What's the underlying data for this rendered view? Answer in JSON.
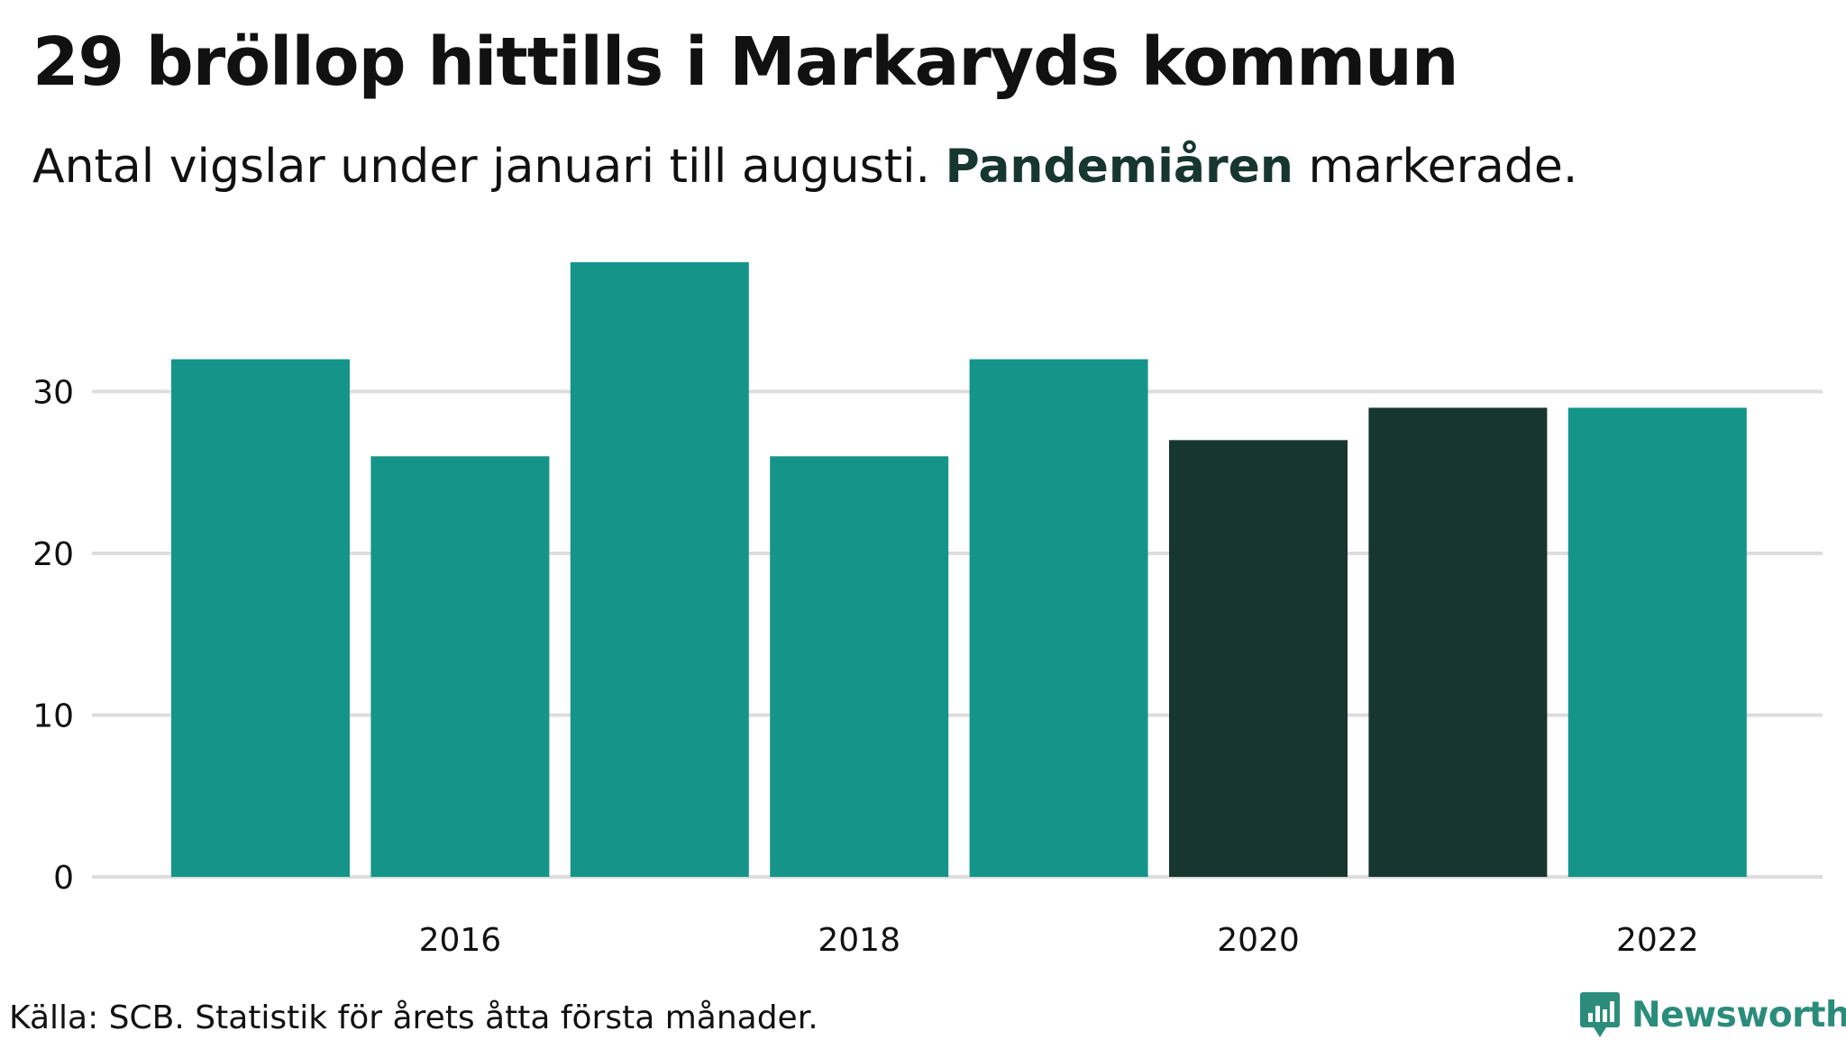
{
  "title": "29 bröllop hittills i Markaryds kommun",
  "subtitle": {
    "before": "Antal vigslar under januari till augusti.",
    "highlight": "Pandemiåren",
    "after": "markerade."
  },
  "source": "Källa: SCB. Statistik för årets åtta första månader.",
  "brand": {
    "name": "Newsworthy",
    "logo_icon": "newsworthy-bar-chart-logo-icon"
  },
  "colors": {
    "normal": "#15958a",
    "pandemic": "#17362f",
    "grid": "#dddddd",
    "brand": "#2b8c7b"
  },
  "chart_data": {
    "type": "bar",
    "x": [
      2015,
      2016,
      2017,
      2018,
      2019,
      2020,
      2021,
      2022
    ],
    "values": [
      32,
      26,
      38,
      26,
      32,
      27,
      29,
      29
    ],
    "highlighted": [
      false,
      false,
      false,
      false,
      false,
      true,
      true,
      false
    ],
    "x_tick_labels": [
      "2016",
      "2018",
      "2020",
      "2022"
    ],
    "y_ticks": [
      0,
      10,
      20,
      30
    ],
    "ylim": [
      0,
      38
    ],
    "grid": "horizontal"
  }
}
